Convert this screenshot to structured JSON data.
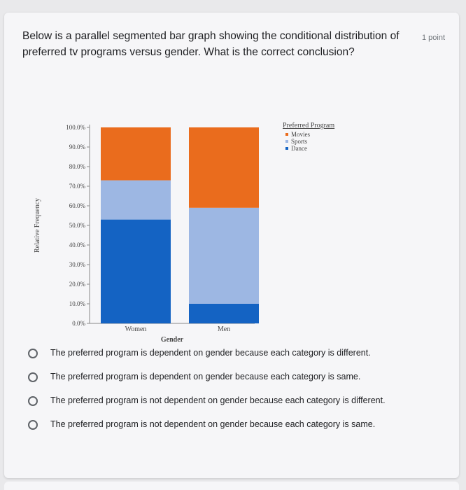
{
  "question": {
    "text": "Below is a parallel segmented bar graph showing the conditional distribution of preferred tv programs versus gender. What is the correct conclusion?",
    "points": "1 point"
  },
  "chart_data": {
    "type": "bar",
    "stacked": true,
    "categories": [
      "Women",
      "Men"
    ],
    "series": [
      {
        "name": "Dance",
        "values": [
          0.53,
          0.1
        ],
        "color": "#1463c3"
      },
      {
        "name": "Sports",
        "values": [
          0.2,
          0.49
        ],
        "color": "#9db7e3"
      },
      {
        "name": "Movies",
        "values": [
          0.27,
          0.41
        ],
        "color": "#ea6c1d"
      }
    ],
    "xlabel": "Gender",
    "ylabel": "Relative Frequency",
    "ylim": [
      0,
      1
    ],
    "yticks": [
      "0.0%",
      "10.0%",
      "20.0%",
      "30.0%",
      "40.0%",
      "50.0%",
      "60.0%",
      "70.0%",
      "80.0%",
      "90.0%",
      "100.0%"
    ],
    "legend": {
      "title": "Preferred Program",
      "entries": [
        "Movies",
        "Sports",
        "Dance"
      ],
      "placement": "top-right"
    }
  },
  "options": [
    {
      "label": "The preferred program is dependent on gender because each category is different."
    },
    {
      "label": "The preferred program is dependent on gender because each category is same."
    },
    {
      "label": "The preferred program is not dependent on gender because each category is different."
    },
    {
      "label": "The preferred program is not dependent on gender because each category is same."
    }
  ]
}
